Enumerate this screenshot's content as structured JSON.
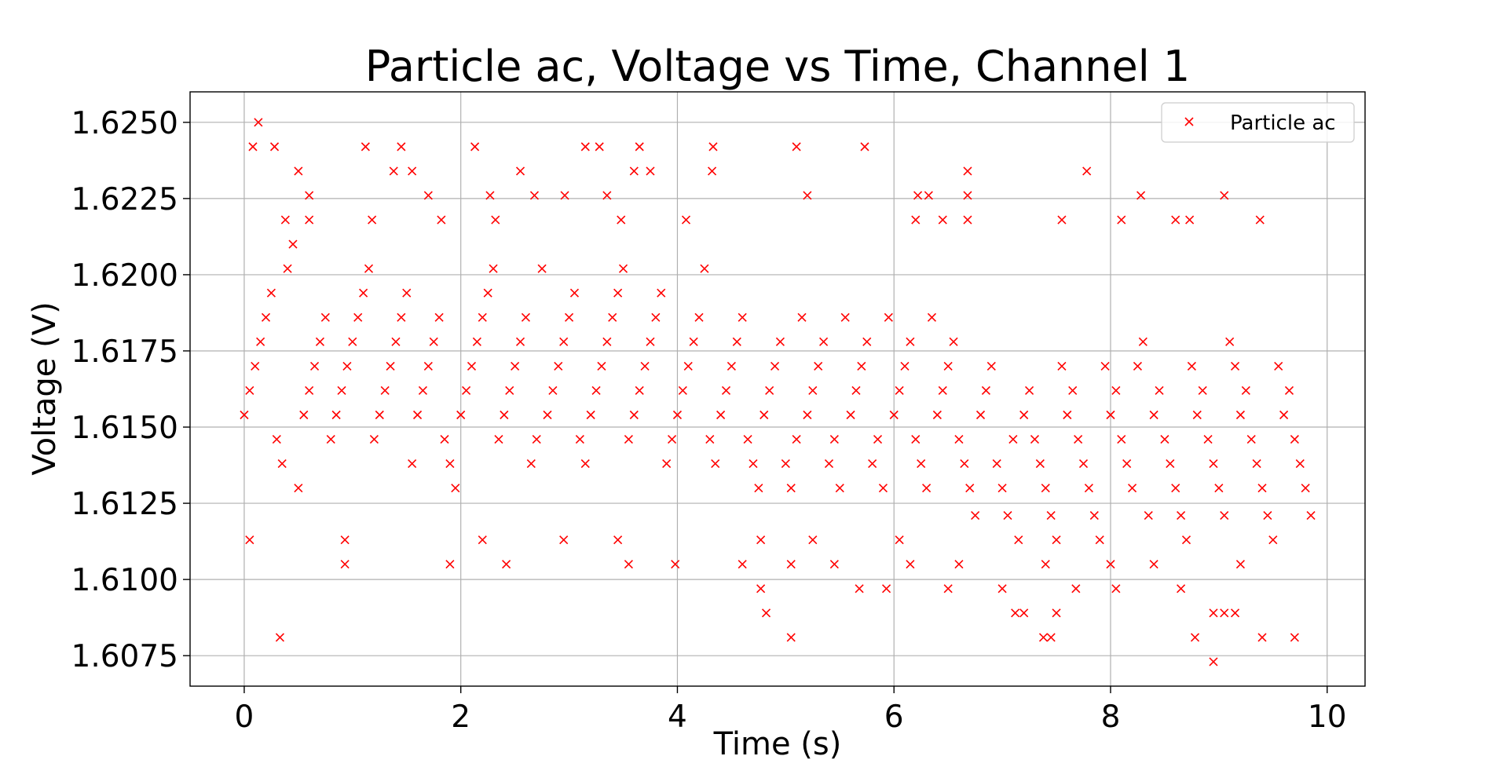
{
  "chart_data": {
    "type": "scatter",
    "title": "Particle ac, Voltage vs Time, Channel 1",
    "xlabel": "Time (s)",
    "ylabel": "Voltage (V)",
    "xlim": [
      -0.5,
      10.35
    ],
    "ylim": [
      1.6065,
      1.626
    ],
    "xticks": [
      0,
      2,
      4,
      6,
      8,
      10
    ],
    "xtick_labels": [
      "0",
      "2",
      "4",
      "6",
      "8",
      "10"
    ],
    "yticks": [
      1.6075,
      1.61,
      1.6125,
      1.615,
      1.6175,
      1.62,
      1.6225,
      1.625
    ],
    "ytick_labels": [
      "1.6075",
      "1.6100",
      "1.6125",
      "1.6150",
      "1.6175",
      "1.6200",
      "1.6225",
      "1.6250"
    ],
    "grid": true,
    "legend": {
      "position": "top-right",
      "entries": [
        "Particle ac"
      ]
    },
    "marker": "x",
    "series": [
      {
        "name": "Particle ac",
        "color": "#ff0000",
        "points": [
          [
            0.0,
            1.6154
          ],
          [
            0.05,
            1.6162
          ],
          [
            0.1,
            1.617
          ],
          [
            0.15,
            1.6178
          ],
          [
            0.2,
            1.6186
          ],
          [
            0.25,
            1.6194
          ],
          [
            0.3,
            1.6146
          ],
          [
            0.35,
            1.6138
          ],
          [
            0.4,
            1.6202
          ],
          [
            0.45,
            1.621
          ],
          [
            0.5,
            1.613
          ],
          [
            0.55,
            1.6154
          ],
          [
            0.6,
            1.6162
          ],
          [
            0.65,
            1.617
          ],
          [
            0.7,
            1.6178
          ],
          [
            0.75,
            1.6186
          ],
          [
            0.8,
            1.6146
          ],
          [
            0.85,
            1.6154
          ],
          [
            0.9,
            1.6162
          ],
          [
            0.95,
            1.617
          ],
          [
            1.0,
            1.6178
          ],
          [
            1.05,
            1.6186
          ],
          [
            1.1,
            1.6194
          ],
          [
            1.15,
            1.6202
          ],
          [
            1.2,
            1.6146
          ],
          [
            1.25,
            1.6154
          ],
          [
            1.3,
            1.6162
          ],
          [
            1.35,
            1.617
          ],
          [
            1.4,
            1.6178
          ],
          [
            1.45,
            1.6186
          ],
          [
            1.5,
            1.6194
          ],
          [
            1.55,
            1.6138
          ],
          [
            1.6,
            1.6154
          ],
          [
            1.65,
            1.6162
          ],
          [
            1.7,
            1.617
          ],
          [
            1.75,
            1.6178
          ],
          [
            1.8,
            1.6186
          ],
          [
            1.85,
            1.6146
          ],
          [
            1.9,
            1.6138
          ],
          [
            1.95,
            1.613
          ],
          [
            2.0,
            1.6154
          ],
          [
            2.05,
            1.6162
          ],
          [
            2.1,
            1.617
          ],
          [
            2.15,
            1.6178
          ],
          [
            2.2,
            1.6186
          ],
          [
            2.25,
            1.6194
          ],
          [
            2.3,
            1.6202
          ],
          [
            2.35,
            1.6146
          ],
          [
            2.4,
            1.6154
          ],
          [
            2.45,
            1.6162
          ],
          [
            2.5,
            1.617
          ],
          [
            2.55,
            1.6178
          ],
          [
            2.6,
            1.6186
          ],
          [
            2.65,
            1.6138
          ],
          [
            2.7,
            1.6146
          ],
          [
            2.75,
            1.6202
          ],
          [
            2.8,
            1.6154
          ],
          [
            2.85,
            1.6162
          ],
          [
            2.9,
            1.617
          ],
          [
            2.95,
            1.6178
          ],
          [
            3.0,
            1.6186
          ],
          [
            3.05,
            1.6194
          ],
          [
            3.1,
            1.6146
          ],
          [
            3.15,
            1.6138
          ],
          [
            3.2,
            1.6154
          ],
          [
            3.25,
            1.6162
          ],
          [
            3.3,
            1.617
          ],
          [
            3.35,
            1.6178
          ],
          [
            3.4,
            1.6186
          ],
          [
            3.45,
            1.6194
          ],
          [
            3.5,
            1.6202
          ],
          [
            3.55,
            1.6146
          ],
          [
            3.6,
            1.6154
          ],
          [
            3.65,
            1.6162
          ],
          [
            3.7,
            1.617
          ],
          [
            3.75,
            1.6178
          ],
          [
            3.8,
            1.6186
          ],
          [
            3.85,
            1.6194
          ],
          [
            3.9,
            1.6138
          ],
          [
            3.95,
            1.6146
          ],
          [
            4.0,
            1.6154
          ],
          [
            4.05,
            1.6162
          ],
          [
            4.1,
            1.617
          ],
          [
            4.15,
            1.6178
          ],
          [
            4.2,
            1.6186
          ],
          [
            4.25,
            1.6202
          ],
          [
            4.3,
            1.6146
          ],
          [
            4.35,
            1.6138
          ],
          [
            4.4,
            1.6154
          ],
          [
            4.45,
            1.6162
          ],
          [
            4.5,
            1.617
          ],
          [
            4.55,
            1.6178
          ],
          [
            4.6,
            1.6186
          ],
          [
            4.65,
            1.6146
          ],
          [
            4.7,
            1.6138
          ],
          [
            4.75,
            1.613
          ],
          [
            4.8,
            1.6154
          ],
          [
            4.85,
            1.6162
          ],
          [
            4.9,
            1.617
          ],
          [
            4.95,
            1.6178
          ],
          [
            5.0,
            1.6138
          ],
          [
            5.05,
            1.613
          ],
          [
            5.1,
            1.6146
          ],
          [
            5.15,
            1.6186
          ],
          [
            5.2,
            1.6154
          ],
          [
            5.25,
            1.6162
          ],
          [
            5.3,
            1.617
          ],
          [
            5.35,
            1.6178
          ],
          [
            5.4,
            1.6138
          ],
          [
            5.45,
            1.6146
          ],
          [
            5.5,
            1.613
          ],
          [
            5.55,
            1.6186
          ],
          [
            5.6,
            1.6154
          ],
          [
            5.65,
            1.6162
          ],
          [
            5.7,
            1.617
          ],
          [
            5.75,
            1.6178
          ],
          [
            5.8,
            1.6138
          ],
          [
            5.85,
            1.6146
          ],
          [
            5.9,
            1.613
          ],
          [
            5.95,
            1.6186
          ],
          [
            6.0,
            1.6154
          ],
          [
            6.05,
            1.6162
          ],
          [
            6.1,
            1.617
          ],
          [
            6.15,
            1.6178
          ],
          [
            6.2,
            1.6146
          ],
          [
            6.25,
            1.6138
          ],
          [
            6.3,
            1.613
          ],
          [
            6.35,
            1.6186
          ],
          [
            6.4,
            1.6154
          ],
          [
            6.45,
            1.6162
          ],
          [
            6.5,
            1.617
          ],
          [
            6.55,
            1.6178
          ],
          [
            6.6,
            1.6146
          ],
          [
            6.65,
            1.6138
          ],
          [
            6.7,
            1.613
          ],
          [
            6.75,
            1.6121
          ],
          [
            6.8,
            1.6154
          ],
          [
            6.85,
            1.6162
          ],
          [
            6.9,
            1.617
          ],
          [
            6.95,
            1.6138
          ],
          [
            7.0,
            1.613
          ],
          [
            7.05,
            1.6121
          ],
          [
            7.1,
            1.6146
          ],
          [
            7.15,
            1.6113
          ],
          [
            7.2,
            1.6154
          ],
          [
            7.25,
            1.6162
          ],
          [
            7.3,
            1.6146
          ],
          [
            7.35,
            1.6138
          ],
          [
            7.4,
            1.613
          ],
          [
            7.45,
            1.6121
          ],
          [
            7.5,
            1.6113
          ],
          [
            7.55,
            1.617
          ],
          [
            7.6,
            1.6154
          ],
          [
            7.65,
            1.6162
          ],
          [
            7.7,
            1.6146
          ],
          [
            7.75,
            1.6138
          ],
          [
            7.8,
            1.613
          ],
          [
            7.85,
            1.6121
          ],
          [
            7.9,
            1.6113
          ],
          [
            7.95,
            1.617
          ],
          [
            8.0,
            1.6154
          ],
          [
            8.05,
            1.6162
          ],
          [
            8.1,
            1.6146
          ],
          [
            8.15,
            1.6138
          ],
          [
            8.2,
            1.613
          ],
          [
            8.25,
            1.617
          ],
          [
            8.3,
            1.6178
          ],
          [
            8.35,
            1.6121
          ],
          [
            8.4,
            1.6154
          ],
          [
            8.45,
            1.6162
          ],
          [
            8.5,
            1.6146
          ],
          [
            8.55,
            1.6138
          ],
          [
            8.6,
            1.613
          ],
          [
            8.65,
            1.6121
          ],
          [
            8.7,
            1.6113
          ],
          [
            8.75,
            1.617
          ],
          [
            8.8,
            1.6154
          ],
          [
            8.85,
            1.6162
          ],
          [
            8.9,
            1.6146
          ],
          [
            8.95,
            1.6138
          ],
          [
            9.0,
            1.613
          ],
          [
            9.05,
            1.6121
          ],
          [
            9.1,
            1.6178
          ],
          [
            9.15,
            1.617
          ],
          [
            9.2,
            1.6154
          ],
          [
            9.25,
            1.6162
          ],
          [
            9.3,
            1.6146
          ],
          [
            9.35,
            1.6138
          ],
          [
            9.4,
            1.613
          ],
          [
            9.45,
            1.6121
          ],
          [
            9.5,
            1.6113
          ],
          [
            9.55,
            1.617
          ],
          [
            9.6,
            1.6154
          ],
          [
            9.65,
            1.6162
          ],
          [
            9.7,
            1.6146
          ],
          [
            9.75,
            1.6138
          ],
          [
            9.8,
            1.613
          ],
          [
            9.85,
            1.6121
          ],
          [
            0.13,
            1.625
          ],
          [
            0.08,
            1.6242
          ],
          [
            0.28,
            1.6242
          ],
          [
            1.12,
            1.6242
          ],
          [
            1.45,
            1.6242
          ],
          [
            2.13,
            1.6242
          ],
          [
            3.15,
            1.6242
          ],
          [
            3.28,
            1.6242
          ],
          [
            3.65,
            1.6242
          ],
          [
            4.33,
            1.6242
          ],
          [
            5.1,
            1.6242
          ],
          [
            5.73,
            1.6242
          ],
          [
            0.5,
            1.6234
          ],
          [
            1.38,
            1.6234
          ],
          [
            1.55,
            1.6234
          ],
          [
            2.55,
            1.6234
          ],
          [
            3.6,
            1.6234
          ],
          [
            3.75,
            1.6234
          ],
          [
            4.32,
            1.6234
          ],
          [
            6.68,
            1.6234
          ],
          [
            7.78,
            1.6234
          ],
          [
            0.6,
            1.6226
          ],
          [
            1.7,
            1.6226
          ],
          [
            2.27,
            1.6226
          ],
          [
            2.68,
            1.6226
          ],
          [
            2.96,
            1.6226
          ],
          [
            3.35,
            1.6226
          ],
          [
            5.2,
            1.6226
          ],
          [
            6.22,
            1.6226
          ],
          [
            6.32,
            1.6226
          ],
          [
            6.68,
            1.6226
          ],
          [
            8.28,
            1.6226
          ],
          [
            9.05,
            1.6226
          ],
          [
            0.38,
            1.6218
          ],
          [
            0.6,
            1.6218
          ],
          [
            1.18,
            1.6218
          ],
          [
            1.82,
            1.6218
          ],
          [
            2.32,
            1.6218
          ],
          [
            3.48,
            1.6218
          ],
          [
            4.08,
            1.6218
          ],
          [
            6.2,
            1.6218
          ],
          [
            6.45,
            1.6218
          ],
          [
            6.68,
            1.6218
          ],
          [
            7.55,
            1.6218
          ],
          [
            8.1,
            1.6218
          ],
          [
            8.6,
            1.6218
          ],
          [
            8.73,
            1.6218
          ],
          [
            9.38,
            1.6218
          ],
          [
            0.33,
            1.6081
          ],
          [
            5.05,
            1.6081
          ],
          [
            7.38,
            1.6081
          ],
          [
            7.45,
            1.6081
          ],
          [
            8.78,
            1.6081
          ],
          [
            9.4,
            1.6081
          ],
          [
            9.7,
            1.6081
          ],
          [
            8.95,
            1.6073
          ],
          [
            4.82,
            1.6089
          ],
          [
            7.12,
            1.6089
          ],
          [
            7.2,
            1.6089
          ],
          [
            7.5,
            1.6089
          ],
          [
            8.95,
            1.6089
          ],
          [
            9.05,
            1.6089
          ],
          [
            9.15,
            1.6089
          ],
          [
            0.93,
            1.6105
          ],
          [
            1.9,
            1.6105
          ],
          [
            2.42,
            1.6105
          ],
          [
            3.55,
            1.6105
          ],
          [
            3.98,
            1.6105
          ],
          [
            4.6,
            1.6105
          ],
          [
            5.05,
            1.6105
          ],
          [
            5.45,
            1.6105
          ],
          [
            6.15,
            1.6105
          ],
          [
            6.6,
            1.6105
          ],
          [
            7.4,
            1.6105
          ],
          [
            8.0,
            1.6105
          ],
          [
            8.4,
            1.6105
          ],
          [
            9.2,
            1.6105
          ],
          [
            4.77,
            1.6097
          ],
          [
            5.68,
            1.6097
          ],
          [
            5.93,
            1.6097
          ],
          [
            6.5,
            1.6097
          ],
          [
            7.0,
            1.6097
          ],
          [
            7.68,
            1.6097
          ],
          [
            8.05,
            1.6097
          ],
          [
            8.65,
            1.6097
          ],
          [
            0.05,
            1.6113
          ],
          [
            0.93,
            1.6113
          ],
          [
            2.2,
            1.6113
          ],
          [
            2.95,
            1.6113
          ],
          [
            3.45,
            1.6113
          ],
          [
            4.77,
            1.6113
          ],
          [
            5.25,
            1.6113
          ],
          [
            6.05,
            1.6113
          ]
        ]
      }
    ]
  }
}
